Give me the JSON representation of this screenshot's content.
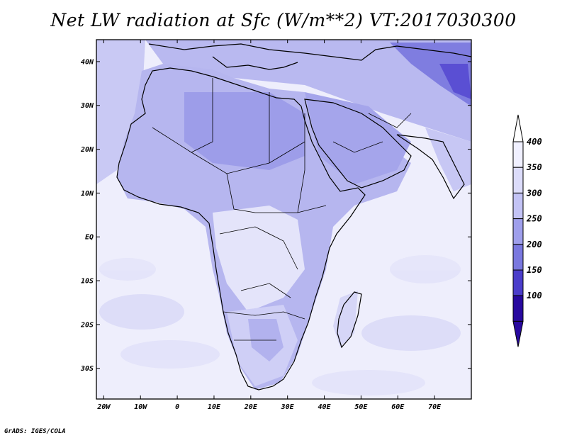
{
  "title": "Net LW radiation at Sfc (W/m**2) VT:2017030300",
  "credit": "GrADS: IGES/COLA",
  "map": {
    "lon_ticks": [
      {
        "lon": -20,
        "label": "20W"
      },
      {
        "lon": -10,
        "label": "10W"
      },
      {
        "lon": 0,
        "label": "0"
      },
      {
        "lon": 10,
        "label": "10E"
      },
      {
        "lon": 20,
        "label": "20E"
      },
      {
        "lon": 30,
        "label": "30E"
      },
      {
        "lon": 40,
        "label": "40E"
      },
      {
        "lon": 50,
        "label": "50E"
      },
      {
        "lon": 60,
        "label": "60E"
      },
      {
        "lon": 70,
        "label": "70E"
      }
    ],
    "lat_ticks": [
      {
        "lat": 40,
        "label": "40N"
      },
      {
        "lat": 30,
        "label": "30N"
      },
      {
        "lat": 20,
        "label": "20N"
      },
      {
        "lat": 10,
        "label": "10N"
      },
      {
        "lat": 0,
        "label": "EQ"
      },
      {
        "lat": -10,
        "label": "10S"
      },
      {
        "lat": -20,
        "label": "20S"
      },
      {
        "lat": -30,
        "label": "30S"
      }
    ],
    "lon_range": [
      -22,
      80
    ],
    "lat_range": [
      -37,
      45
    ]
  },
  "colorbar": {
    "levels": [
      "400",
      "350",
      "300",
      "250",
      "200",
      "150",
      "100"
    ],
    "colors": [
      "#f0f0ff",
      "#dcdcfa",
      "#c3c3f5",
      "#9f9fec",
      "#7a78df",
      "#4b3dcb",
      "#28099f"
    ],
    "triangle_top": "#ffffff",
    "triangle_bottom": "#28099f"
  }
}
